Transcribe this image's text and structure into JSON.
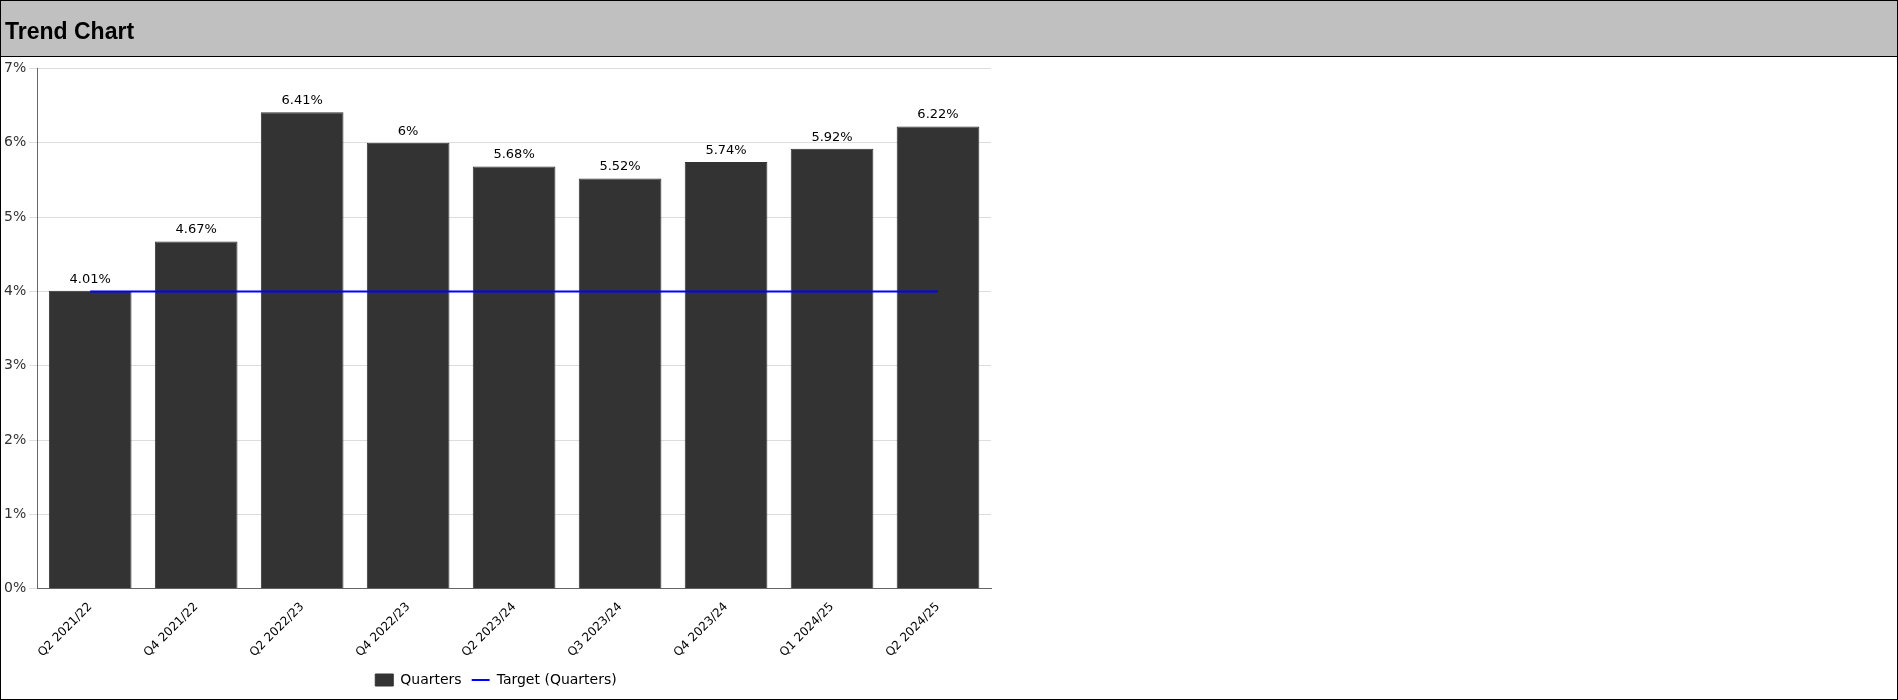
{
  "chart_data": {
    "type": "bar",
    "title": "Trend Chart",
    "categories": [
      "Q2 2021/22",
      "Q4 2021/22",
      "Q2 2022/23",
      "Q4 2022/23",
      "Q2 2023/24",
      "Q3 2023/24",
      "Q4 2023/24",
      "Q1 2024/25",
      "Q2 2024/25"
    ],
    "series": [
      {
        "name": "Quarters",
        "color": "#333333",
        "values": [
          4.01,
          4.67,
          6.41,
          6,
          5.68,
          5.52,
          5.74,
          5.92,
          6.22
        ],
        "value_labels": [
          "4.01%",
          "4.67%",
          "6.41%",
          "6%",
          "5.68%",
          "5.52%",
          "5.74%",
          "5.92%",
          "6.22%"
        ]
      },
      {
        "name": "Target (Quarters)",
        "type": "line",
        "color": "#0000ff",
        "values": [
          4,
          4,
          4,
          4,
          4,
          4,
          4,
          4,
          4
        ]
      }
    ],
    "ylim": [
      0,
      7
    ],
    "yticks": [
      {
        "value": 0,
        "label": "0%"
      },
      {
        "value": 1,
        "label": "1%"
      },
      {
        "value": 2,
        "label": "2%"
      },
      {
        "value": 3,
        "label": "3%"
      },
      {
        "value": 4,
        "label": "4%"
      },
      {
        "value": 5,
        "label": "5%"
      },
      {
        "value": 6,
        "label": "6%"
      },
      {
        "value": 7,
        "label": "7%"
      }
    ],
    "grid": "y",
    "legend": "bottom",
    "marker": "none",
    "line_style": "solid"
  }
}
